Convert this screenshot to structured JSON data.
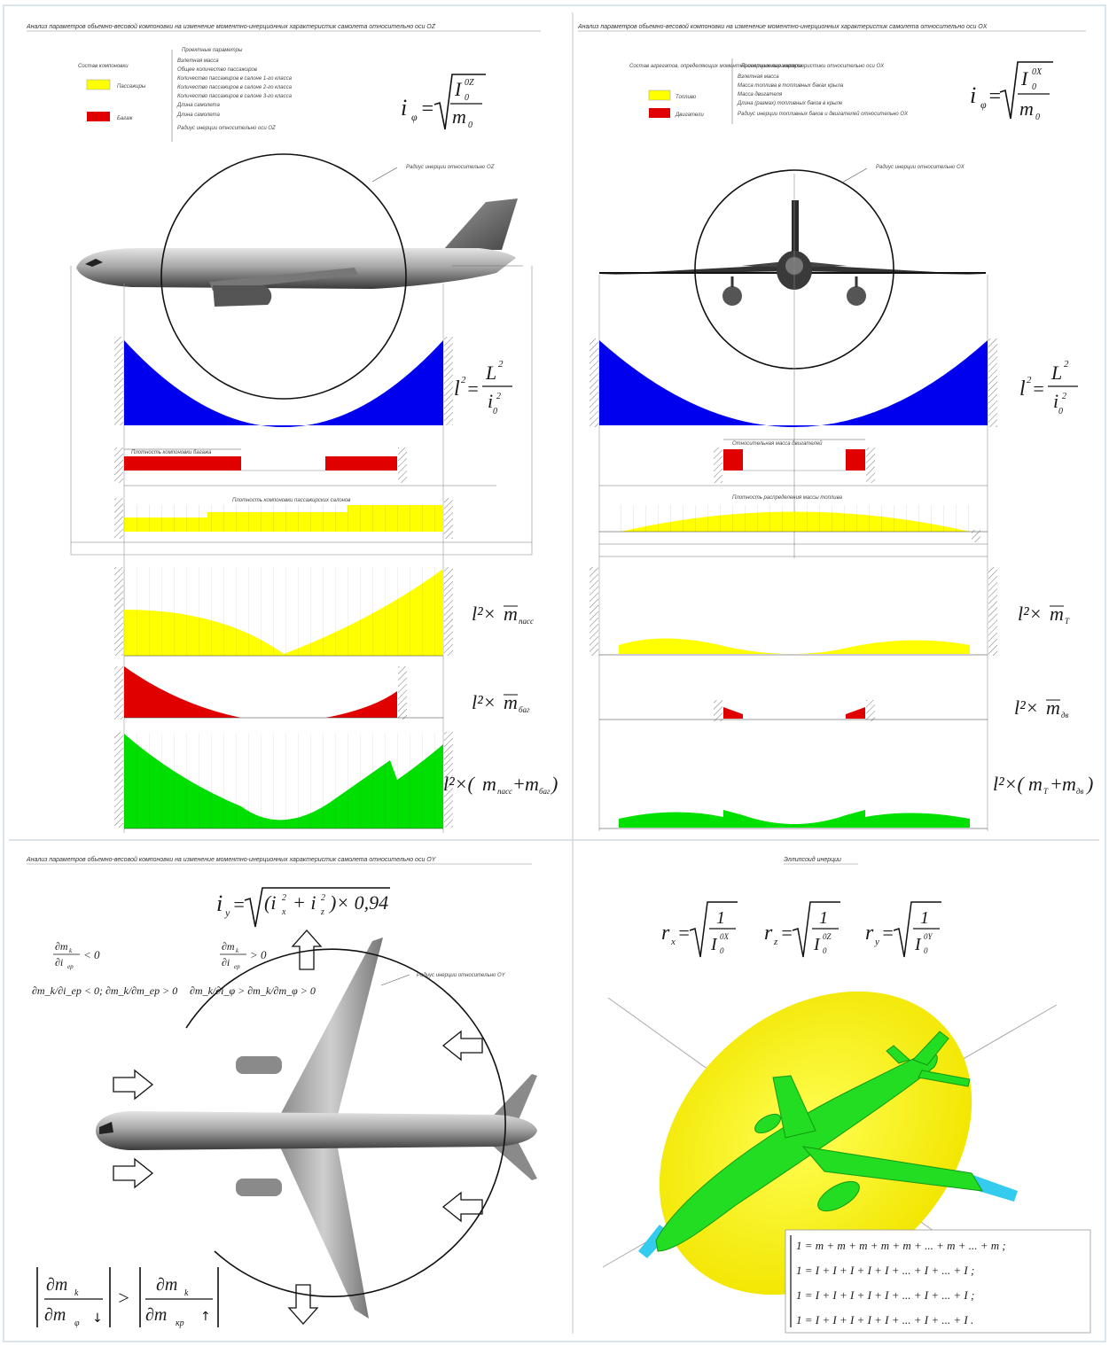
{
  "panels": {
    "top_left": {
      "title": "Анализ параметров обьемно-весовой компоновки на изменение моментно-инерционных характеристик самолета относительно оси OZ",
      "legend": {
        "heading": "Состав компоновки",
        "items": [
          {
            "label": "Пассажиры",
            "color": "#ffff00"
          },
          {
            "label": "Багаж",
            "color": "#e00000"
          }
        ]
      },
      "params": {
        "heading": "Проектные параметры",
        "lines": [
          "Взлетная масса",
          "Общее количество пассажиров",
          "Количество пассажиров в салоне 1-го класса",
          "Количество пассажиров в салоне 2-го класса",
          "Количество пассажиров в салоне 3-го класса",
          "Длина самолета",
          "Длина самолета",
          "Радиус инерции относительно оси OZ"
        ]
      },
      "formula_i": {
        "lhs": "i",
        "sub": "φ",
        "num": "I",
        "num_sup": "0Z",
        "num_sub": "0",
        "den": "m",
        "den_sub": "0"
      },
      "circle_label": "Радиус инерции относительно OZ",
      "lbar_label": "Плотность компоновки багажа",
      "ybar_label": "Плотность компоновки пассажирских салонов",
      "formula_l": {
        "lhs": "l",
        "exp": "2",
        "num": "L",
        "num_exp": "2",
        "den": "i",
        "den_sub": "0",
        "den_exp": "2"
      },
      "rows": [
        {
          "prefix": "l²×",
          "m": "m",
          "sub": "пасс"
        },
        {
          "prefix": "l²×",
          "m": "m",
          "sub": "баг"
        },
        {
          "prefix": "l²×(",
          "m": "m",
          "sub": "пасс",
          "plus": "+",
          "m2": "m",
          "sub2": "баг",
          "close": ")"
        }
      ]
    },
    "top_right": {
      "title": "Анализ параметров обьемно-весовой компоновки на изменение моментно-инерционных характеристик самолета относительно оси OX",
      "legend": {
        "heading": "Состав агрегатов, определяющих моментно-инерционные характеристики относительно оси OX",
        "items": [
          {
            "label": "Топливо",
            "color": "#ffff00"
          },
          {
            "label": "Двигатели",
            "color": "#e00000"
          }
        ]
      },
      "params": {
        "heading": "Проектные параметры",
        "lines": [
          "Взлетная масса",
          "Масса топлива в топливных баках крыла",
          "Масса двигателя",
          "Длина (размах) топливных баков в крыле",
          "Радиус инерции топливных баков и двигателей относительно OX"
        ]
      },
      "formula_i": {
        "lhs": "i",
        "sub": "φ",
        "num": "I",
        "num_sup": "0X",
        "num_sub": "0",
        "den": "m",
        "den_sub": "0"
      },
      "circle_label": "Радиус инерции относительно OX",
      "lbar_label": "Относительная масса двигателей",
      "ybar_label": "Плотность распределения массы топлива",
      "formula_l": {
        "lhs": "l",
        "exp": "2",
        "num": "L",
        "num_exp": "2",
        "den": "i",
        "den_sub": "0",
        "den_exp": "2"
      },
      "rows": [
        {
          "prefix": "l²×",
          "m": "m",
          "sub": "Т"
        },
        {
          "prefix": "l²×",
          "m": "m",
          "sub": "дв"
        },
        {
          "prefix": "l²×(",
          "m": "m",
          "sub": "Т",
          "plus": "+",
          "m2": "m",
          "sub2": "дв",
          "close": ")"
        }
      ]
    },
    "bottom_left": {
      "title": "Анализ параметров обьемно-весовой компоновки на изменение моментно-инерционных характеристик самолета относительно оси OY",
      "formula": {
        "lhs": "i",
        "lhs_sub": "y",
        "open": "(i",
        "a_sub": "x",
        "a_exp": "2",
        "plus": "+ i",
        "b_sub": "z",
        "b_exp": "2",
        "close": ")× 0,94"
      },
      "circle_label": "Радиус инерции относительно OY",
      "rules": [
        {
          "frac_num": "∂m",
          "num_sub": "k",
          "frac_den": "∂i",
          "den_sub": "ер",
          "op": "< 0"
        },
        {
          "text": "∂m_k/∂i_ep < 0; ∂m_k/∂m_ep > 0"
        },
        {
          "frac_num": "∂m",
          "num_sub": "k",
          "frac_den": "∂i",
          "den_sub": "ер",
          "op": "> 0"
        },
        {
          "text": "∂m_k/∂i_φ > ∂m_k/∂m_φ > 0"
        }
      ],
      "inequality": {
        "left_num": "∂m",
        "left_num_sub": "k",
        "left_den": "∂m",
        "left_den_sub": "φ",
        "left_arrow": "↓",
        "op": ">",
        "right_num": "∂m",
        "right_num_sub": "k",
        "right_den": "∂m",
        "right_den_sub": "кр",
        "right_arrow": "↑"
      }
    },
    "bottom_right": {
      "title": "Эллипсоид инерции",
      "formulas": [
        {
          "lhs": "r",
          "lhs_sub": "x",
          "num": "1",
          "den": "I",
          "den_sup": "0X",
          "den_sub": "0"
        },
        {
          "lhs": "r",
          "lhs_sub": "z",
          "num": "1",
          "den": "I",
          "den_sup": "0Z",
          "den_sub": "0"
        },
        {
          "lhs": "r",
          "lhs_sub": "y",
          "num": "1",
          "den": "I",
          "den_sup": "0Y",
          "den_sub": "0"
        }
      ],
      "sums": [
        "1 = m + m + m + m + m + ... + m + ... + m ;",
        "1 = I + I + I + I + I + ... + I + ... + I ;",
        "1 = I + I + I + I + I + ... + I + ... + I ;",
        "1 = I + I + I + I + I + ... + I + ... + I ."
      ]
    }
  },
  "colors": {
    "blue": "#0000ee",
    "yellow": "#ffff00",
    "red": "#e00000",
    "green": "#00e000",
    "cyan": "#33ccee"
  }
}
